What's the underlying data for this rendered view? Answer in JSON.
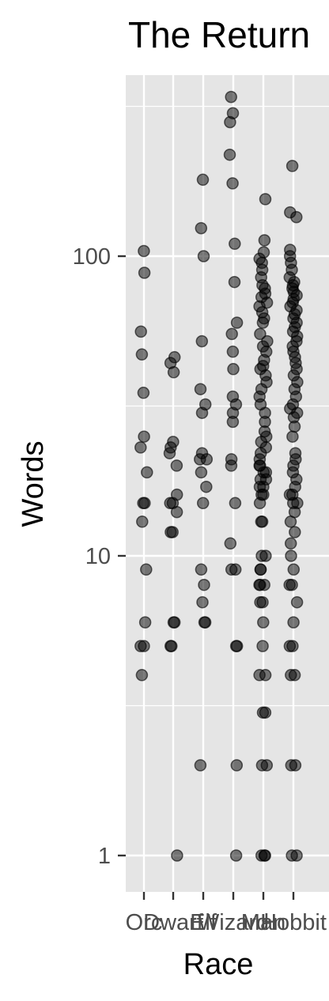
{
  "chart_data": {
    "type": "scatter",
    "title": "The Return",
    "xlabel": "Race",
    "ylabel": "Words",
    "y_scale": "log10",
    "ylim": [
      0.8,
      400
    ],
    "y_ticks": [
      1,
      10,
      100
    ],
    "y_tick_labels": [
      "1",
      "10",
      "100"
    ],
    "categories": [
      "Orc",
      "Dwarf",
      "Elf",
      "Wizard",
      "Man",
      "Hobbit"
    ],
    "grid": true,
    "panel_background": "#e5e5e5",
    "grid_color": "#ffffff",
    "point_color": "#000000",
    "point_opacity": 0.5,
    "series": [
      {
        "category": "Orc",
        "values": [
          104,
          88,
          56,
          47,
          35,
          25,
          23,
          19,
          15,
          15,
          13,
          9,
          6,
          5,
          5,
          4
        ]
      },
      {
        "category": "Dwarf",
        "values": [
          46,
          44,
          41,
          24,
          23,
          22,
          20,
          16,
          15,
          15,
          14,
          12,
          12,
          6,
          6,
          5,
          5,
          1
        ]
      },
      {
        "category": "Elf",
        "values": [
          180,
          124,
          100,
          52,
          36,
          32,
          30,
          22,
          21,
          21,
          19,
          17,
          15,
          9,
          8,
          7,
          6,
          6,
          2
        ]
      },
      {
        "category": "Wizard",
        "values": [
          340,
          300,
          280,
          218,
          175,
          110,
          82,
          60,
          55,
          48,
          42,
          34,
          32,
          30,
          28,
          21,
          20,
          15,
          11,
          9,
          9,
          5,
          5,
          2,
          1
        ]
      },
      {
        "category": "Man",
        "values": [
          155,
          113,
          103,
          98,
          95,
          90,
          85,
          80,
          78,
          75,
          73,
          70,
          68,
          65,
          62,
          60,
          55,
          52,
          50,
          48,
          45,
          43,
          42,
          40,
          38,
          36,
          34,
          32,
          30,
          28,
          26,
          25,
          24,
          23,
          22,
          21,
          20,
          20,
          19,
          19,
          18,
          18,
          17,
          17,
          16,
          16,
          15,
          13,
          13,
          10,
          10,
          9,
          9,
          8,
          8,
          8,
          7,
          7,
          6,
          5,
          4,
          4,
          3,
          3,
          2,
          2,
          1,
          1,
          1
        ]
      },
      {
        "category": "Hobbit",
        "values": [
          200,
          140,
          135,
          105,
          100,
          95,
          90,
          85,
          82,
          80,
          78,
          76,
          74,
          72,
          70,
          68,
          66,
          64,
          62,
          60,
          58,
          56,
          54,
          52,
          50,
          48,
          46,
          44,
          42,
          40,
          38,
          36,
          34,
          32,
          31,
          30,
          29,
          27,
          25,
          22,
          21,
          20,
          19,
          18,
          17,
          16,
          16,
          15,
          15,
          14,
          13,
          12,
          11,
          10,
          9,
          8,
          8,
          7,
          6,
          5,
          5,
          4,
          4,
          2,
          2,
          1,
          1
        ]
      }
    ]
  }
}
